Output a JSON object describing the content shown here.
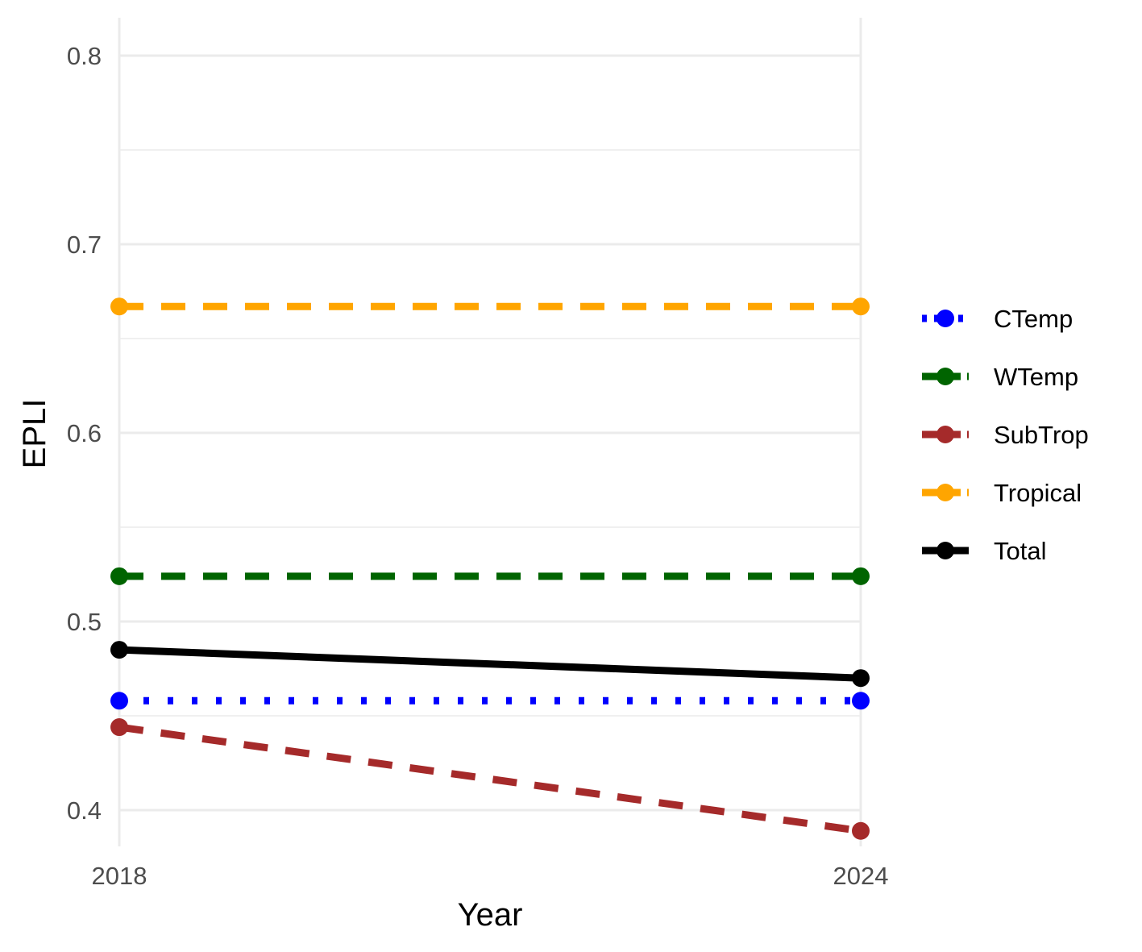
{
  "chart_data": {
    "type": "line",
    "title": "",
    "xlabel": "Year",
    "ylabel": "EPLI",
    "x": [
      2018,
      2024
    ],
    "x_tick_labels": [
      "2018",
      "2024"
    ],
    "xlim": [
      2018,
      2024
    ],
    "ylim": [
      0.38,
      0.82
    ],
    "y_ticks": [
      0.4,
      0.5,
      0.6,
      0.7,
      0.8
    ],
    "y_tick_labels": [
      "0.4",
      "0.5",
      "0.6",
      "0.7",
      "0.8"
    ],
    "grid": true,
    "legend_position": "right",
    "series": [
      {
        "name": "CTemp",
        "values": [
          0.458,
          0.458
        ],
        "color": "#0000FF",
        "line_style": "dotted"
      },
      {
        "name": "WTemp",
        "values": [
          0.524,
          0.524
        ],
        "color": "#006400",
        "line_style": "dashed"
      },
      {
        "name": "SubTrop",
        "values": [
          0.444,
          0.389
        ],
        "color": "#A52A2A",
        "line_style": "dashed"
      },
      {
        "name": "Tropical",
        "values": [
          0.667,
          0.667
        ],
        "color": "#FFA500",
        "line_style": "dashed"
      },
      {
        "name": "Total",
        "values": [
          0.485,
          0.47
        ],
        "color": "#000000",
        "line_style": "solid"
      }
    ]
  }
}
